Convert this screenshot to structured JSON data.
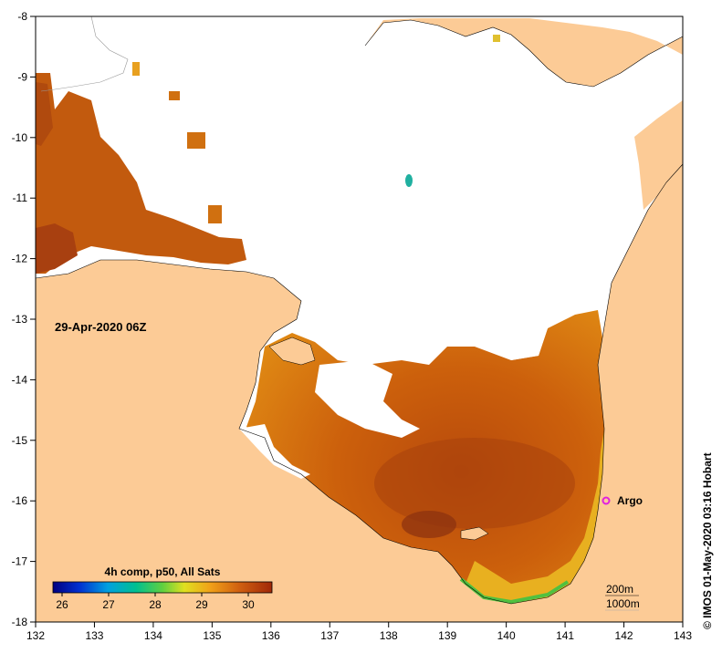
{
  "map": {
    "timestamp": "29-Apr-2020 06Z",
    "credit": "© IMOS 01-May-2020 03:16 Hobart",
    "argo_label": "Argo",
    "contours": {
      "first": "200m",
      "second": "1000m"
    },
    "x_ticks": [
      "132",
      "133",
      "134",
      "135",
      "136",
      "137",
      "138",
      "139",
      "140",
      "141",
      "142",
      "143"
    ],
    "y_ticks": [
      "-8",
      "-9",
      "-10",
      "-11",
      "-12",
      "-13",
      "-14",
      "-15",
      "-16",
      "-17",
      "-18"
    ],
    "colorbar": {
      "title": "4h comp, p50, All Sats",
      "ticks": [
        "26",
        "27",
        "28",
        "29",
        "30"
      ]
    },
    "colors": {
      "land": "#fccb96",
      "cloud": "#ffffff",
      "sst_warm": "#c85a0a",
      "sst_hot": "#a8420c",
      "sst_mid": "#dc7a10",
      "sst_cool": "#eab422",
      "argo": "#e020e0"
    }
  }
}
